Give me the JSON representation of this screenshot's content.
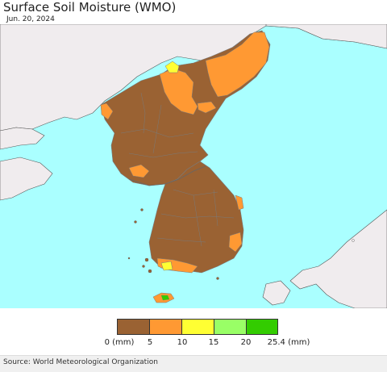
{
  "header": {
    "title": "Surface Soil Moisture (WMO)",
    "date": "Jun. 20, 2024"
  },
  "map": {
    "colors": {
      "sea": "#aaffff",
      "land_other": "#f0ecee",
      "class_0_5": "#9a6233",
      "class_5_10": "#ff9933",
      "class_10_15": "#ffff33",
      "class_15_20": "#99ff66",
      "class_20_25": "#33cc00",
      "border": "#7a7a7a"
    }
  },
  "legend": {
    "colors": [
      "#9a6233",
      "#ff9933",
      "#ffff33",
      "#99ff66",
      "#33cc00"
    ],
    "ticks": [
      "0 (mm)",
      "5",
      "10",
      "15",
      "20",
      "25.4 (mm)"
    ]
  },
  "footer": {
    "source": "Source: World Meteorological Organization"
  }
}
